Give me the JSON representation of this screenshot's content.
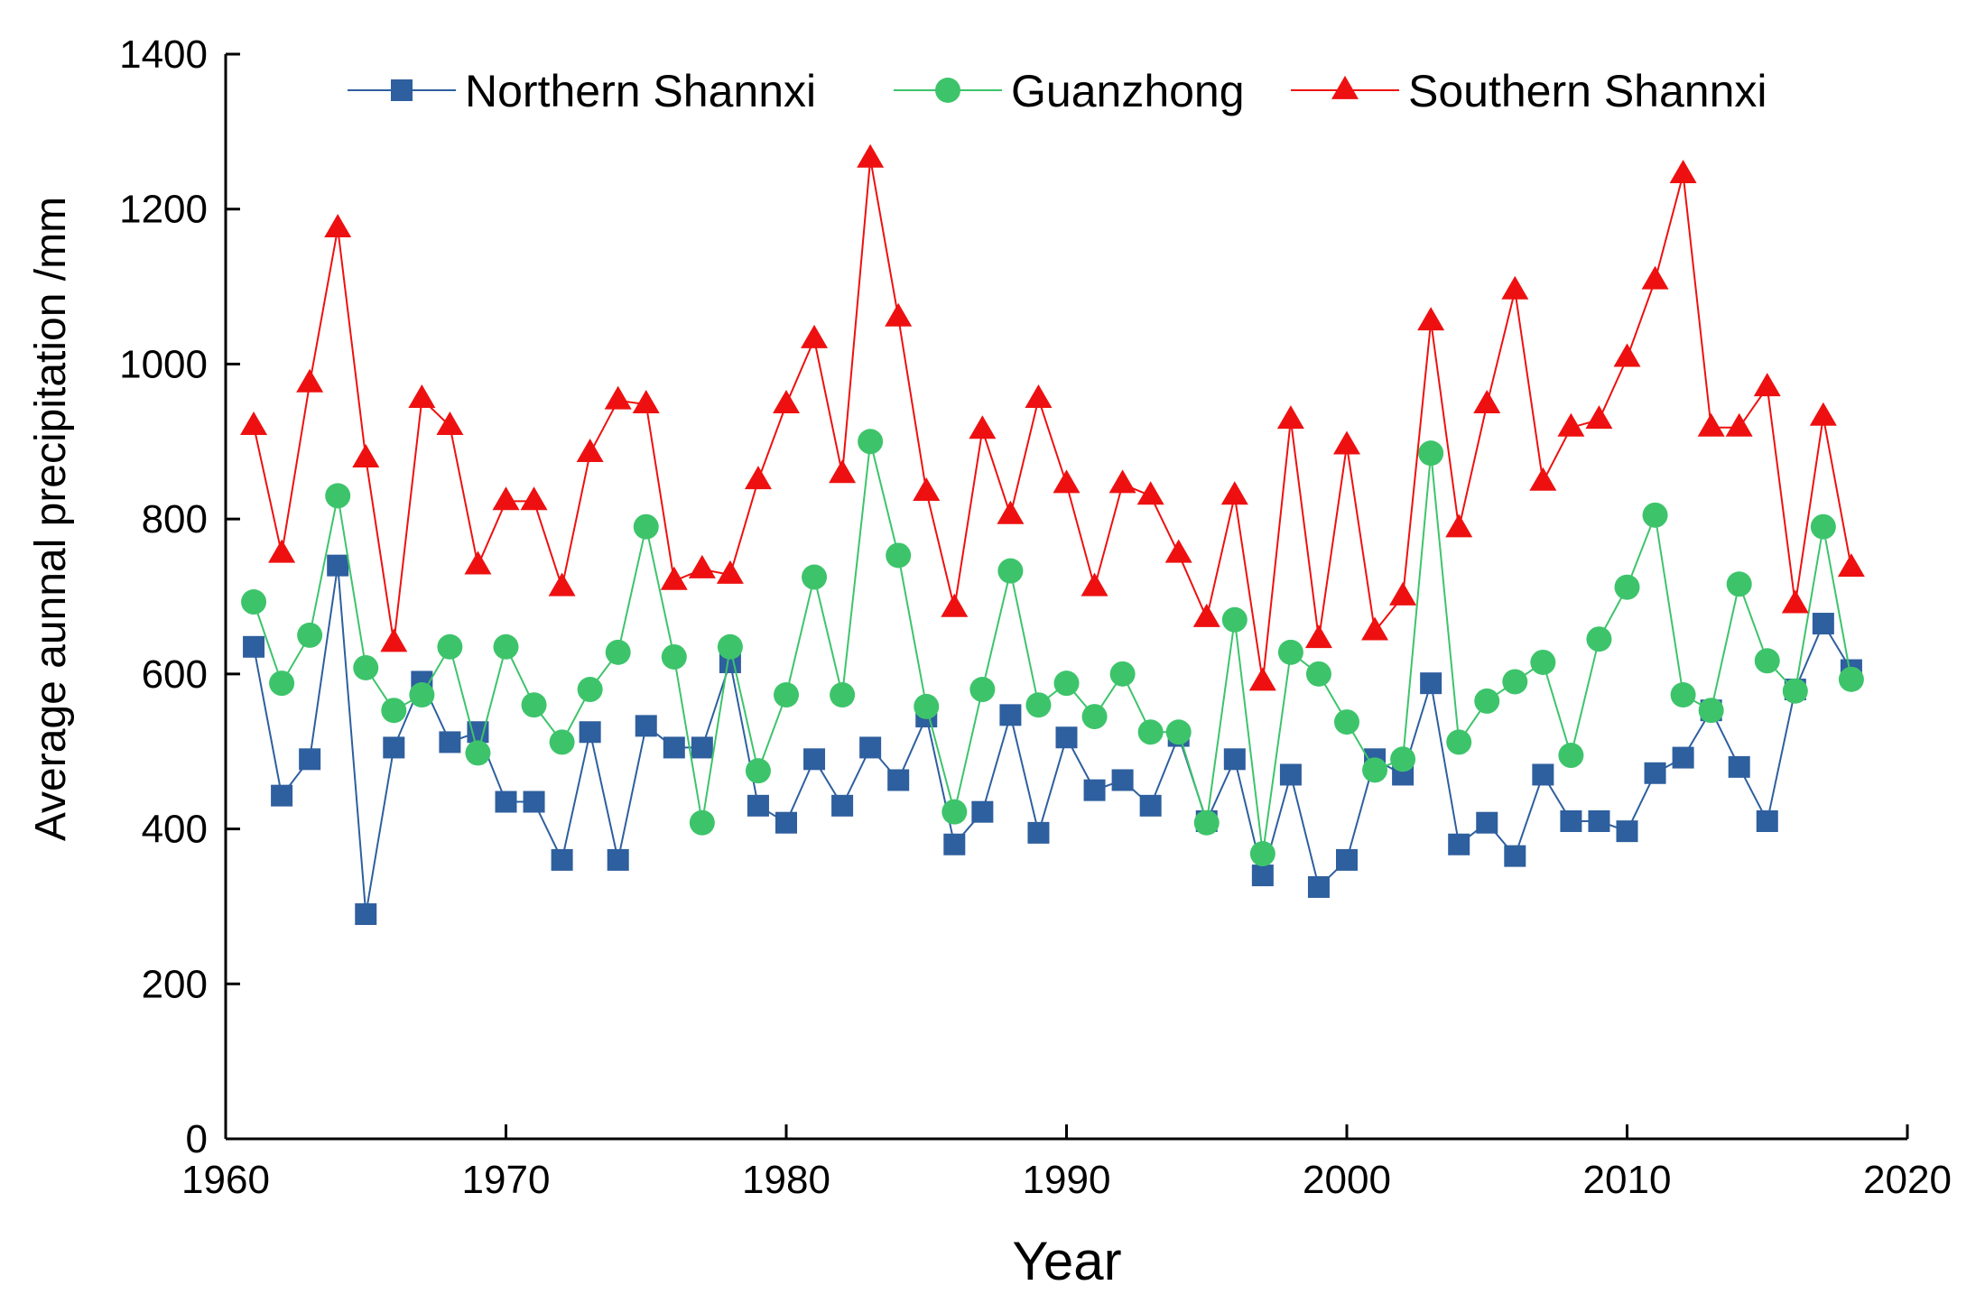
{
  "chart_data": {
    "type": "line",
    "title": "",
    "xlabel": "Year",
    "ylabel": "Average aunnal precipitation /mm",
    "xlim": [
      1960,
      2020
    ],
    "ylim": [
      0,
      1400
    ],
    "xticks": [
      1960,
      1970,
      1980,
      1990,
      2000,
      2010,
      2020
    ],
    "yticks": [
      0,
      200,
      400,
      600,
      800,
      1000,
      1200,
      1400
    ],
    "legend_position": "top",
    "grid": false,
    "x": [
      1961,
      1962,
      1963,
      1964,
      1965,
      1966,
      1967,
      1968,
      1969,
      1970,
      1971,
      1972,
      1973,
      1974,
      1975,
      1976,
      1977,
      1978,
      1979,
      1980,
      1981,
      1982,
      1983,
      1984,
      1985,
      1986,
      1987,
      1988,
      1989,
      1990,
      1991,
      1992,
      1993,
      1994,
      1995,
      1996,
      1997,
      1998,
      1999,
      2000,
      2001,
      2002,
      2003,
      2004,
      2005,
      2006,
      2007,
      2008,
      2009,
      2010,
      2011,
      2012,
      2013,
      2014,
      2015,
      2016,
      2017,
      2018
    ],
    "series": [
      {
        "name": "Northern Shannxi",
        "color": "#2e5f9e",
        "marker": "square",
        "values": [
          635,
          443,
          490,
          740,
          290,
          505,
          590,
          512,
          525,
          435,
          435,
          360,
          525,
          360,
          533,
          505,
          505,
          615,
          430,
          408,
          490,
          430,
          505,
          463,
          545,
          380,
          422,
          547,
          395,
          518,
          450,
          463,
          430,
          520,
          410,
          490,
          340,
          470,
          325,
          360,
          490,
          470,
          588,
          380,
          408,
          365,
          470,
          410,
          410,
          397,
          472,
          492,
          553,
          480,
          410,
          580,
          665,
          605
        ]
      },
      {
        "name": "Guanzhong",
        "color": "#3dc46b",
        "marker": "circle",
        "values": [
          693,
          588,
          650,
          830,
          608,
          553,
          573,
          635,
          498,
          635,
          560,
          512,
          580,
          628,
          790,
          622,
          408,
          635,
          475,
          573,
          725,
          573,
          900,
          753,
          558,
          422,
          580,
          733,
          560,
          588,
          545,
          600,
          525,
          525,
          408,
          670,
          368,
          628,
          600,
          538,
          476,
          490,
          885,
          512,
          565,
          590,
          615,
          495,
          645,
          712,
          805,
          573,
          553,
          716,
          617,
          578,
          790,
          593
        ]
      },
      {
        "name": "Southern Shannxi",
        "color": "#ee1010",
        "marker": "triangle",
        "values": [
          920,
          755,
          975,
          1175,
          878,
          640,
          955,
          920,
          740,
          823,
          823,
          712,
          885,
          953,
          948,
          720,
          735,
          728,
          850,
          948,
          1032,
          858,
          1265,
          1060,
          835,
          685,
          915,
          805,
          955,
          845,
          712,
          845,
          830,
          755,
          672,
          830,
          590,
          928,
          645,
          895,
          655,
          700,
          1055,
          788,
          948,
          1095,
          848,
          918,
          928,
          1008,
          1108,
          1245,
          918,
          918,
          970,
          690,
          932,
          737
        ]
      }
    ]
  }
}
